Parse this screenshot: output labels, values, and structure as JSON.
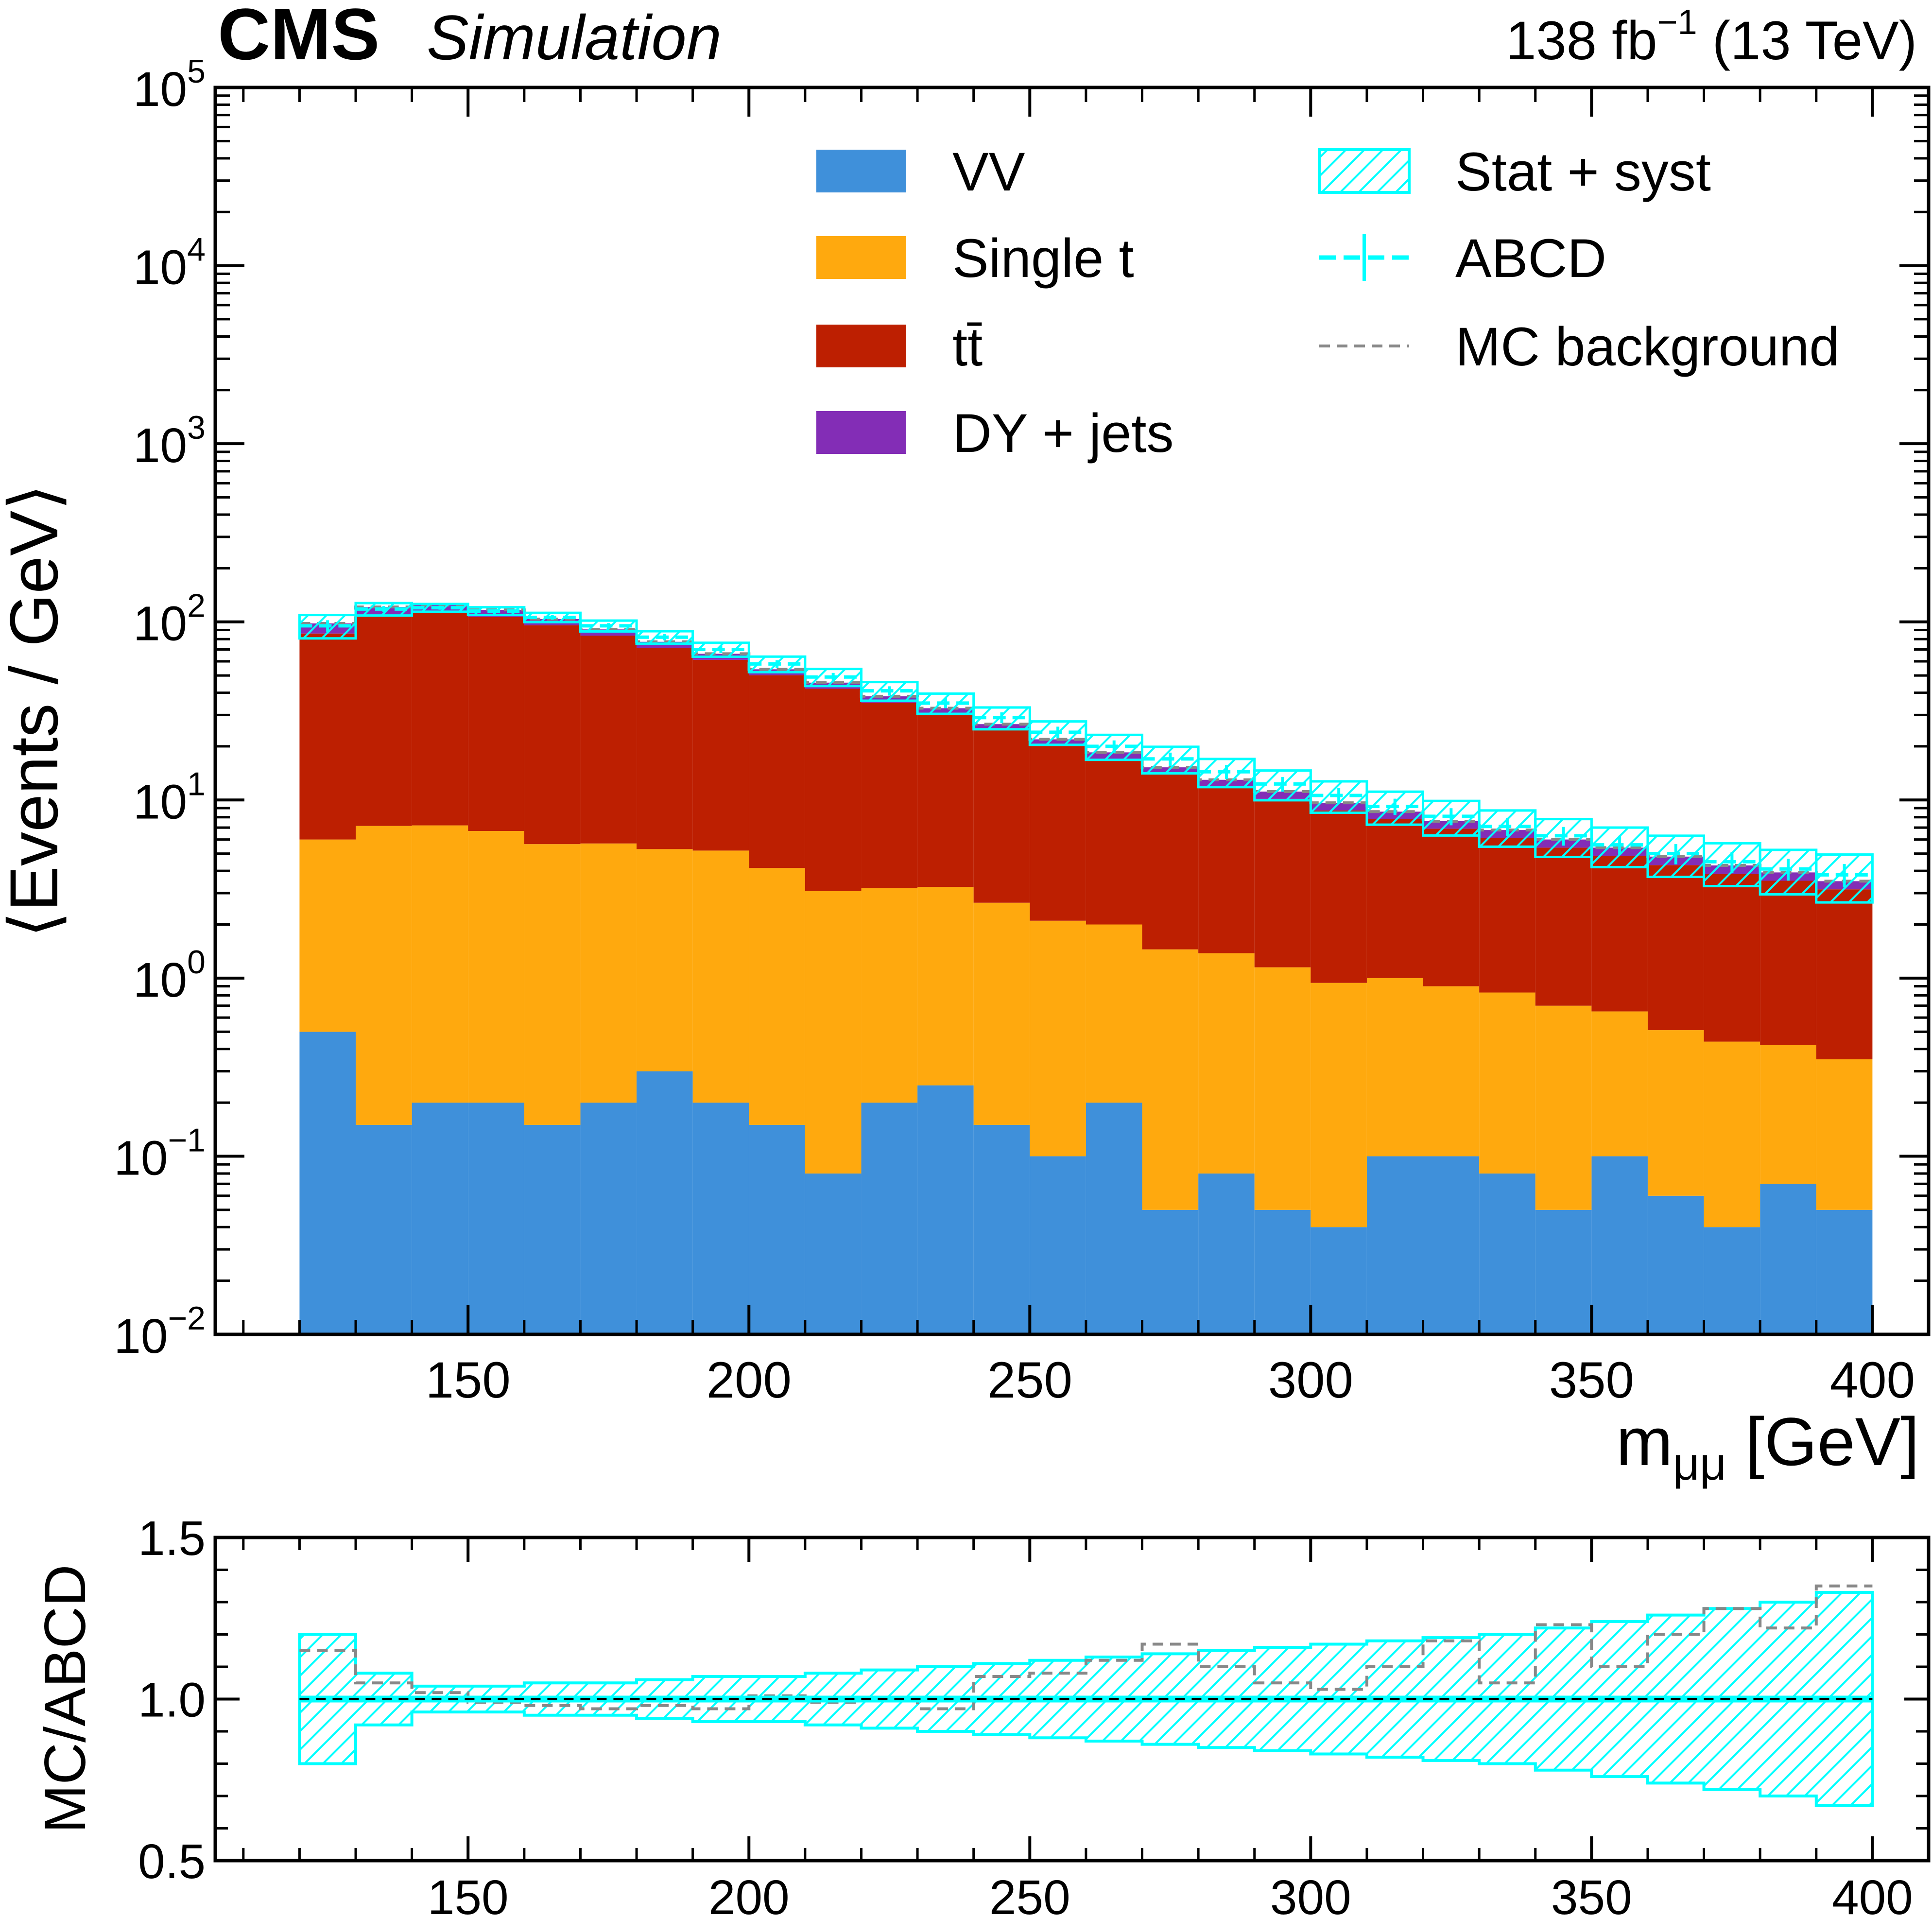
{
  "header": {
    "experiment": "CMS",
    "status": "Simulation",
    "lumi": "138 fb",
    "lumi_exp": "−1",
    "energy": " (13 TeV)"
  },
  "chart_data": [
    {
      "type": "bar",
      "stacked": true,
      "log_y": true,
      "xlabel": "m",
      "xlabel_sub": "μμ",
      "xlabel_unit": " [GeV]",
      "ylabel": "⟨Events / GeV⟩",
      "xlim": [
        105,
        410
      ],
      "ylim": [
        0.01,
        100000
      ],
      "x_ticks": [
        150,
        200,
        250,
        300,
        350,
        400
      ],
      "y_ticks": [
        {
          "base": "10",
          "exp": "−2",
          "value": 0.01
        },
        {
          "base": "10",
          "exp": "−1",
          "value": 0.1
        },
        {
          "base": "10",
          "exp": "0",
          "value": 1
        },
        {
          "base": "10",
          "exp": "1",
          "value": 10
        },
        {
          "base": "10",
          "exp": "2",
          "value": 100
        },
        {
          "base": "10",
          "exp": "3",
          "value": 1000
        },
        {
          "base": "10",
          "exp": "4",
          "value": 10000
        },
        {
          "base": "10",
          "exp": "5",
          "value": 100000
        }
      ],
      "bin_edges": [
        120,
        130,
        140,
        150,
        160,
        170,
        180,
        190,
        200,
        210,
        220,
        230,
        240,
        250,
        260,
        270,
        280,
        290,
        300,
        310,
        320,
        330,
        340,
        350,
        360,
        370,
        380,
        390,
        400
      ],
      "series": [
        {
          "name": "VV",
          "color": "#3f90da",
          "values": [
            0.5,
            0.15,
            0.2,
            0.2,
            0.15,
            0.2,
            0.3,
            0.2,
            0.15,
            0.08,
            0.2,
            0.25,
            0.15,
            0.1,
            0.2,
            0.05,
            0.08,
            0.05,
            0.04,
            0.1,
            0.1,
            0.08,
            0.05,
            0.1,
            0.06,
            0.04,
            0.07,
            0.05
          ]
        },
        {
          "name": "Single t",
          "color": "#ffa90e",
          "values": [
            5.5,
            7.0,
            7.0,
            6.5,
            5.5,
            5.5,
            5.0,
            5.0,
            4.0,
            3.0,
            3.0,
            3.0,
            2.5,
            2.0,
            1.8,
            1.4,
            1.3,
            1.1,
            0.9,
            0.9,
            0.8,
            0.75,
            0.65,
            0.55,
            0.45,
            0.4,
            0.35,
            0.3
          ]
        },
        {
          "name": "tt̄",
          "color": "#bd1f01",
          "values": [
            80,
            100,
            105,
            100,
            90,
            78,
            66,
            56,
            46,
            39,
            32,
            27,
            22,
            18,
            15,
            12.5,
            10.5,
            9.0,
            7.8,
            6.8,
            6.0,
            5.3,
            4.7,
            4.2,
            3.8,
            3.4,
            3.1,
            2.8
          ]
        },
        {
          "name": "DY + jets",
          "color": "#832db6",
          "values": [
            12,
            14,
            12,
            10,
            8,
            7,
            6,
            5,
            4,
            3.5,
            3.0,
            2.5,
            2.0,
            1.8,
            1.5,
            1.3,
            1.1,
            1.0,
            0.9,
            0.8,
            0.7,
            0.65,
            0.6,
            0.55,
            0.5,
            0.45,
            0.4,
            0.35
          ]
        }
      ],
      "abcd": {
        "name": "ABCD",
        "color": "#00ffff",
        "values": [
          95,
          118,
          120,
          115,
          106,
          95,
          82,
          70,
          58,
          49,
          41,
          35,
          29,
          24,
          20,
          17,
          14.4,
          12.3,
          10.6,
          9.2,
          8.1,
          7.1,
          6.3,
          5.6,
          5.0,
          4.5,
          4.1,
          3.8
        ],
        "rel_unc": [
          0.15,
          0.08,
          0.05,
          0.05,
          0.06,
          0.07,
          0.08,
          0.09,
          0.1,
          0.11,
          0.12,
          0.13,
          0.14,
          0.15,
          0.16,
          0.17,
          0.18,
          0.19,
          0.2,
          0.21,
          0.22,
          0.23,
          0.24,
          0.25,
          0.26,
          0.27,
          0.28,
          0.3
        ]
      },
      "legend": [
        {
          "label": "VV",
          "kind": "fill",
          "color": "#3f90da"
        },
        {
          "label": "Single t",
          "kind": "fill",
          "color": "#ffa90e"
        },
        {
          "label": "tt̄",
          "kind": "fill",
          "color": "#bd1f01"
        },
        {
          "label": "DY + jets",
          "kind": "fill",
          "color": "#832db6"
        },
        {
          "label": "Stat + syst",
          "kind": "hatch",
          "color": "#00ffff"
        },
        {
          "label": "ABCD",
          "kind": "errorline",
          "color": "#00ffff"
        },
        {
          "label": "MC background",
          "kind": "dashed",
          "color": "#888888"
        }
      ],
      "legend_position": "top"
    },
    {
      "type": "line",
      "xlabel": "",
      "ylabel": "MC/ABCD",
      "xlim": [
        105,
        410
      ],
      "ylim": [
        0.5,
        1.5
      ],
      "x_ticks": [
        150,
        200,
        250,
        300,
        350,
        400
      ],
      "y_ticks": [
        "0.5",
        "1.0",
        "1.5"
      ],
      "bin_edges": [
        120,
        130,
        140,
        150,
        160,
        170,
        180,
        190,
        200,
        210,
        220,
        230,
        240,
        250,
        260,
        270,
        280,
        290,
        300,
        310,
        320,
        330,
        340,
        350,
        360,
        370,
        380,
        390,
        400
      ],
      "series": [
        {
          "name": "MC background",
          "values": [
            1.15,
            1.05,
            1.02,
            0.99,
            0.98,
            0.97,
            0.98,
            0.97,
            1.01,
            0.99,
            1.0,
            0.97,
            1.07,
            1.08,
            1.12,
            1.17,
            1.1,
            1.05,
            1.03,
            1.1,
            1.18,
            1.05,
            1.23,
            1.1,
            1.2,
            1.28,
            1.22,
            1.35
          ]
        }
      ],
      "unc_band_rel": [
        0.2,
        0.08,
        0.04,
        0.04,
        0.05,
        0.05,
        0.06,
        0.07,
        0.07,
        0.08,
        0.09,
        0.1,
        0.11,
        0.12,
        0.13,
        0.14,
        0.15,
        0.16,
        0.17,
        0.18,
        0.19,
        0.2,
        0.22,
        0.24,
        0.26,
        0.28,
        0.3,
        0.33
      ],
      "reference_line": 1.0
    }
  ]
}
